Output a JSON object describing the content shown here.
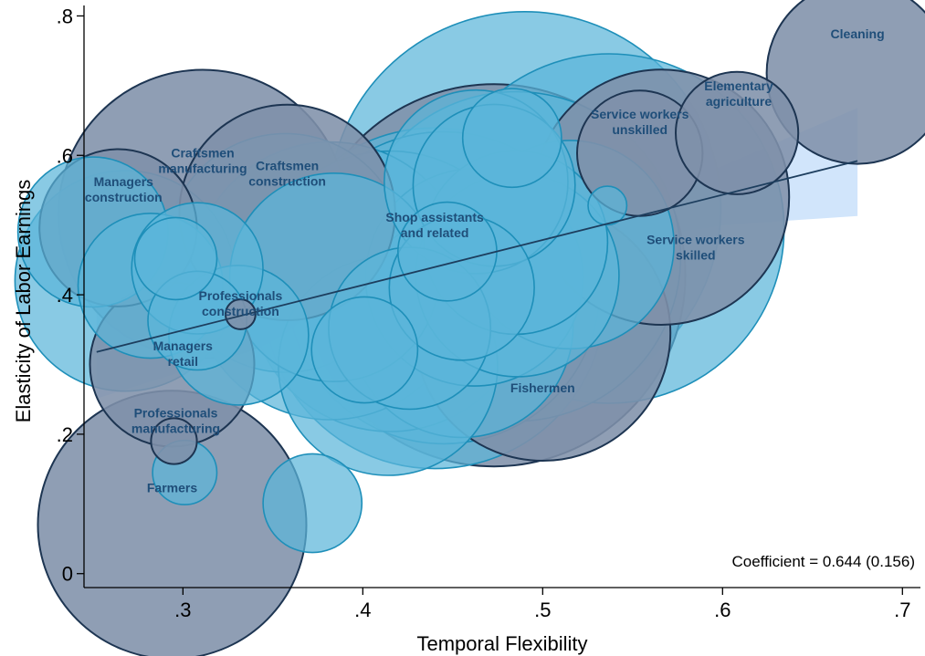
{
  "chart_data": {
    "type": "scatter",
    "xlabel": "Temporal Flexibility",
    "ylabel": "Elasticity of Labor Earnings",
    "xlim": [
      0.245,
      0.71
    ],
    "ylim": [
      -0.02,
      0.815
    ],
    "xticks": [
      0.3,
      0.4,
      0.5,
      0.6,
      0.7
    ],
    "xtick_labels": [
      ".3",
      ".4",
      ".5",
      ".6",
      ".7"
    ],
    "yticks": [
      0,
      0.2,
      0.4,
      0.6,
      0.8
    ],
    "ytick_labels": [
      "0",
      ".2",
      ".4",
      ".6",
      ".8"
    ],
    "grid": false,
    "coefficient_text": "Coefficient = 0.644 (0.156)",
    "colors": {
      "light_fill": "#5bb5d9",
      "light_stroke": "#1e8fb9",
      "dark_fill": "#7f91aa",
      "dark_stroke": "#1d3552",
      "fit_line": "#1d3e5e",
      "ci_band": "#c9e0fa",
      "label": "#1f4e79"
    },
    "fit": {
      "x": [
        0.252,
        0.675
      ],
      "y": [
        0.318,
        0.592
      ]
    },
    "ci_band": {
      "x": [
        0.252,
        0.3,
        0.35,
        0.4,
        0.45,
        0.47,
        0.5,
        0.55,
        0.6,
        0.675
      ],
      "upper": [
        0.385,
        0.403,
        0.42,
        0.44,
        0.462,
        0.473,
        0.494,
        0.535,
        0.585,
        0.668
      ],
      "lower": [
        0.251,
        0.29,
        0.33,
        0.372,
        0.415,
        0.432,
        0.452,
        0.48,
        0.5,
        0.513
      ]
    },
    "points": [
      {
        "x": 0.49,
        "y": 0.525,
        "size": 0.0205,
        "group": "light"
      },
      {
        "x": 0.537,
        "y": 0.495,
        "size": 0.0163,
        "group": "light"
      },
      {
        "x": 0.44,
        "y": 0.395,
        "size": 0.0155,
        "group": "light"
      },
      {
        "x": 0.485,
        "y": 0.455,
        "size": 0.0145,
        "group": "light"
      },
      {
        "x": 0.445,
        "y": 0.41,
        "size": 0.013,
        "group": "light"
      },
      {
        "x": 0.415,
        "y": 0.405,
        "size": 0.0105,
        "group": "light"
      },
      {
        "x": 0.382,
        "y": 0.42,
        "size": 0.0103,
        "group": "light"
      },
      {
        "x": 0.357,
        "y": 0.46,
        "size": 0.0076,
        "group": "light"
      },
      {
        "x": 0.515,
        "y": 0.472,
        "size": 0.0058,
        "group": "light"
      },
      {
        "x": 0.455,
        "y": 0.355,
        "size": 0.0066,
        "group": "light"
      },
      {
        "x": 0.462,
        "y": 0.425,
        "size": 0.0063,
        "group": "light"
      },
      {
        "x": 0.268,
        "y": 0.42,
        "size": 0.0065,
        "group": "light"
      },
      {
        "x": 0.384,
        "y": 0.425,
        "size": 0.0058,
        "group": "light"
      },
      {
        "x": 0.414,
        "y": 0.298,
        "size": 0.0064,
        "group": "light"
      },
      {
        "x": 0.486,
        "y": 0.428,
        "size": 0.0055,
        "group": "light"
      },
      {
        "x": 0.485,
        "y": 0.475,
        "size": 0.0045,
        "group": "light"
      },
      {
        "x": 0.463,
        "y": 0.562,
        "size": 0.0045,
        "group": "light"
      },
      {
        "x": 0.473,
        "y": 0.557,
        "size": 0.0035,
        "group": "light"
      },
      {
        "x": 0.426,
        "y": 0.352,
        "size": 0.0035,
        "group": "light"
      },
      {
        "x": 0.25,
        "y": 0.49,
        "size": 0.003,
        "group": "light"
      },
      {
        "x": 0.282,
        "y": 0.413,
        "size": 0.0028,
        "group": "light"
      },
      {
        "x": 0.308,
        "y": 0.438,
        "size": 0.0023,
        "group": "light"
      },
      {
        "x": 0.455,
        "y": 0.41,
        "size": 0.0028,
        "group": "light"
      },
      {
        "x": 0.331,
        "y": 0.342,
        "size": 0.0026,
        "group": "light"
      },
      {
        "x": 0.401,
        "y": 0.321,
        "size": 0.0015,
        "group": "light"
      },
      {
        "x": 0.483,
        "y": 0.625,
        "size": 0.0013,
        "group": "light"
      },
      {
        "x": 0.372,
        "y": 0.101,
        "size": 0.0013,
        "group": "light"
      },
      {
        "x": 0.308,
        "y": 0.363,
        "size": 0.0013,
        "group": "light"
      },
      {
        "x": 0.447,
        "y": 0.462,
        "size": 0.0013,
        "group": "light"
      },
      {
        "x": 0.296,
        "y": 0.452,
        "size": 0.0009,
        "group": "light"
      },
      {
        "x": 0.301,
        "y": 0.145,
        "size": 0.00055,
        "group": "light"
      },
      {
        "x": 0.536,
        "y": 0.528,
        "size": 0.0002,
        "group": "light"
      },
      {
        "x": 0.473,
        "y": 0.428,
        "size": 0.0195,
        "group": "dark"
      },
      {
        "x": 0.311,
        "y": 0.516,
        "size": 0.0111,
        "group": "dark"
      },
      {
        "x": 0.294,
        "y": 0.07,
        "size": 0.0096,
        "group": "dark"
      },
      {
        "x": 0.5,
        "y": 0.345,
        "size": 0.0087,
        "group": "dark"
      },
      {
        "x": 0.566,
        "y": 0.54,
        "size": 0.0087,
        "group": "dark"
      },
      {
        "x": 0.358,
        "y": 0.518,
        "size": 0.0062,
        "group": "dark"
      },
      {
        "x": 0.675,
        "y": 0.718,
        "size": 0.0044,
        "group": "dark"
      },
      {
        "x": 0.294,
        "y": 0.3,
        "size": 0.0036,
        "group": "dark"
      },
      {
        "x": 0.264,
        "y": 0.496,
        "size": 0.0033,
        "group": "dark"
      },
      {
        "x": 0.554,
        "y": 0.603,
        "size": 0.0021,
        "group": "dark"
      },
      {
        "x": 0.608,
        "y": 0.632,
        "size": 0.002,
        "group": "dark"
      },
      {
        "x": 0.295,
        "y": 0.19,
        "size": 0.00028,
        "group": "dark"
      },
      {
        "x": 0.332,
        "y": 0.372,
        "size": 0.00012,
        "group": "dark"
      }
    ],
    "annotations": [
      {
        "lines": [
          "Cleaning"
        ],
        "x": 0.675,
        "y": 0.768
      },
      {
        "lines": [
          "Elementary",
          "agriculture"
        ],
        "x": 0.609,
        "y": 0.693
      },
      {
        "lines": [
          "Service workers",
          "unskilled"
        ],
        "x": 0.554,
        "y": 0.653
      },
      {
        "lines": [
          "Craftsmen",
          "manufacturing"
        ],
        "x": 0.311,
        "y": 0.597
      },
      {
        "lines": [
          "Craftsmen",
          "construction"
        ],
        "x": 0.358,
        "y": 0.579
      },
      {
        "lines": [
          "Managers",
          "construction"
        ],
        "x": 0.267,
        "y": 0.556
      },
      {
        "lines": [
          "Shop assistants",
          "and related"
        ],
        "x": 0.44,
        "y": 0.505
      },
      {
        "lines": [
          "Service workers",
          "skilled"
        ],
        "x": 0.585,
        "y": 0.473
      },
      {
        "lines": [
          "Professionals",
          "construction"
        ],
        "x": 0.332,
        "y": 0.392
      },
      {
        "lines": [
          "Managers",
          "retail"
        ],
        "x": 0.3,
        "y": 0.32
      },
      {
        "lines": [
          "Fishermen"
        ],
        "x": 0.5,
        "y": 0.26
      },
      {
        "lines": [
          "Professionals",
          "manufacturing"
        ],
        "x": 0.296,
        "y": 0.224
      },
      {
        "lines": [
          "Farmers"
        ],
        "x": 0.294,
        "y": 0.117
      }
    ]
  }
}
